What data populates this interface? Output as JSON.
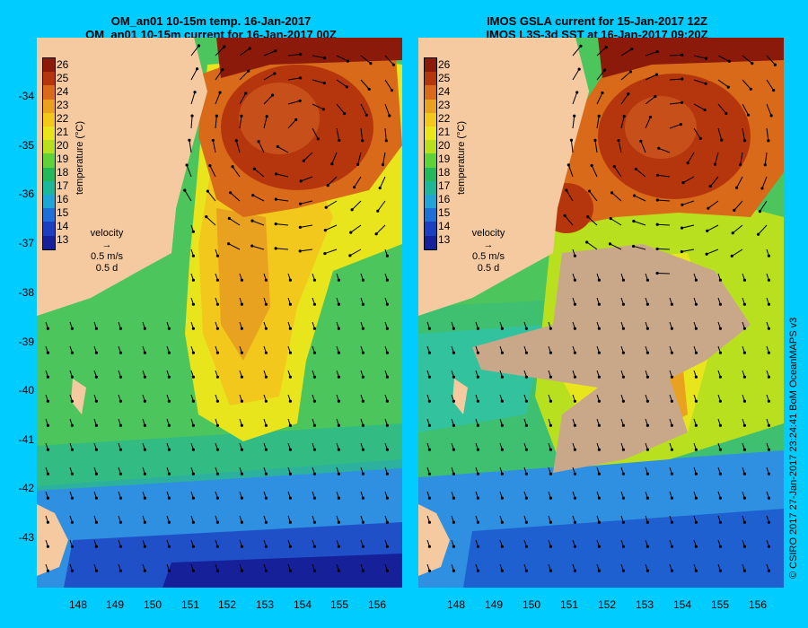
{
  "left_panel": {
    "title_line1": "OM_an01 10-15m temp. 16-Jan-2017",
    "title_line2": "OM_an01 10-15m current for 16-Jan-2017 00Z"
  },
  "right_panel": {
    "title_line1": "IMOS GSLA current for 15-Jan-2017 12Z",
    "title_line2": "IMOS L3S-3d SST at 16-Jan-2017 09:20Z"
  },
  "y_axis_labels": [
    "-34",
    "-35",
    "-36",
    "-37",
    "-38",
    "-39",
    "-40",
    "-41",
    "-42",
    "-43"
  ],
  "x_axis_labels": [
    "148",
    "149",
    "150",
    "151",
    "152",
    "153",
    "154",
    "155",
    "156"
  ],
  "colorbar": {
    "title": "temperature (°C)",
    "values": [
      "26",
      "25",
      "24",
      "23",
      "22",
      "21",
      "20",
      "19",
      "18",
      "17",
      "16",
      "15",
      "14",
      "13"
    ],
    "colors": [
      "#8b1a0a",
      "#b5360d",
      "#d86a1a",
      "#e9a21f",
      "#f2c81c",
      "#e8e51c",
      "#b8e01e",
      "#5fd23a",
      "#23b85a",
      "#1fb79a",
      "#21a4d6",
      "#1e6fd8",
      "#1c3fc2",
      "#15209a"
    ]
  },
  "velocity_legend": {
    "label": "velocity",
    "speed": "0.5 m/s",
    "duration": "0.5 d"
  },
  "credit": "© CSIRO 2017   27-Jan-2017 23:24:41 BoM OceanMAPS v3",
  "colors": {
    "background": "#00ccff",
    "land": "#f6caa0",
    "no_data": "#c9a88a"
  }
}
